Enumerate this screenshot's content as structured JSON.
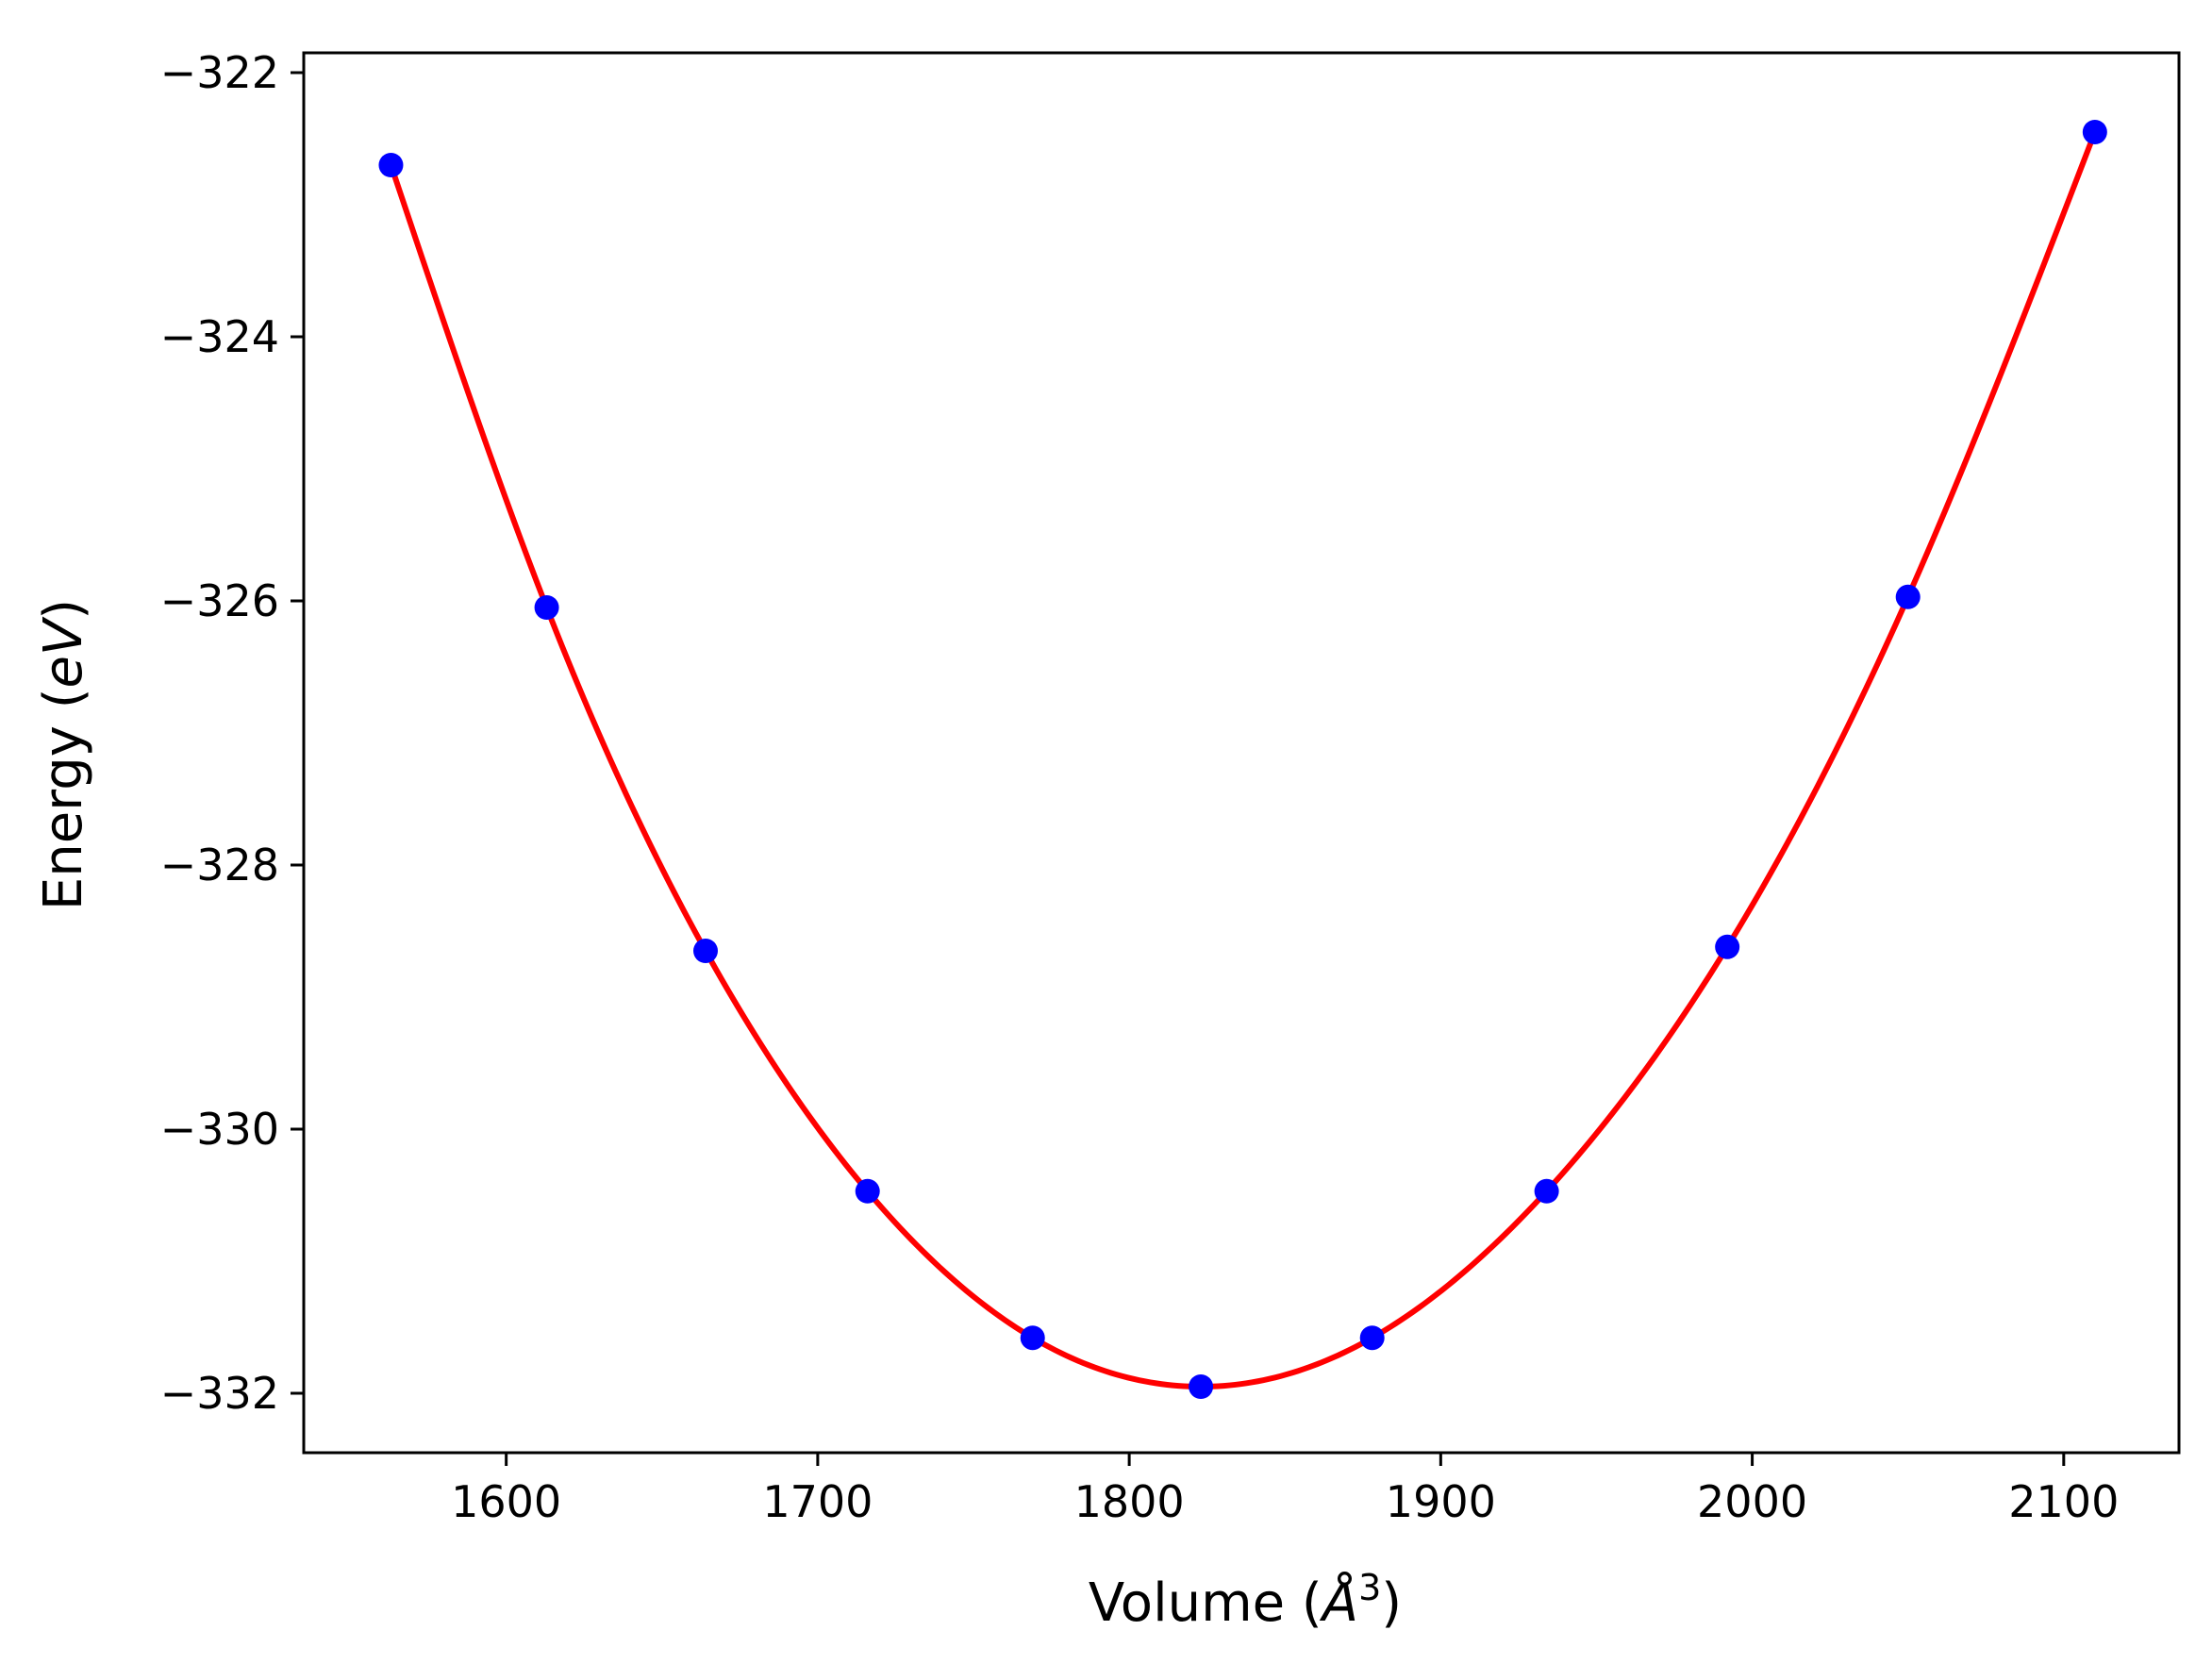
{
  "chart_data": {
    "type": "scatter",
    "xlabel": {
      "prefix": "Volume (",
      "symbol": "Å",
      "sup": "3",
      "suffix": ")"
    },
    "ylabel": {
      "prefix": "Energy (",
      "italic": "eV",
      "suffix": ")"
    },
    "xlim": [
      1535,
      2137
    ],
    "ylim": [
      -332.45,
      -321.85
    ],
    "xticks": [
      1600,
      1700,
      1800,
      1900,
      2000,
      2100
    ],
    "xtick_labels": [
      "1600",
      "1700",
      "1800",
      "1900",
      "2000",
      "2100"
    ],
    "yticks": [
      -322,
      -324,
      -326,
      -328,
      -330,
      -332
    ],
    "ytick_labels": [
      "−322",
      "−324",
      "−326",
      "−328",
      "−330",
      "−332"
    ],
    "grid": false,
    "series": [
      {
        "type": "scatter",
        "color": "#0000ff",
        "x": [
          1563,
          1613,
          1664,
          1716,
          1769,
          1823,
          1878,
          1934,
          1992,
          2050,
          2110
        ],
        "y": [
          -322.7,
          -326.05,
          -328.65,
          -330.47,
          -331.58,
          -331.95,
          -331.58,
          -330.47,
          -328.62,
          -325.97,
          -322.45
        ]
      },
      {
        "type": "line",
        "color": "#ff0000",
        "fit": "cubic-through-points"
      }
    ]
  }
}
